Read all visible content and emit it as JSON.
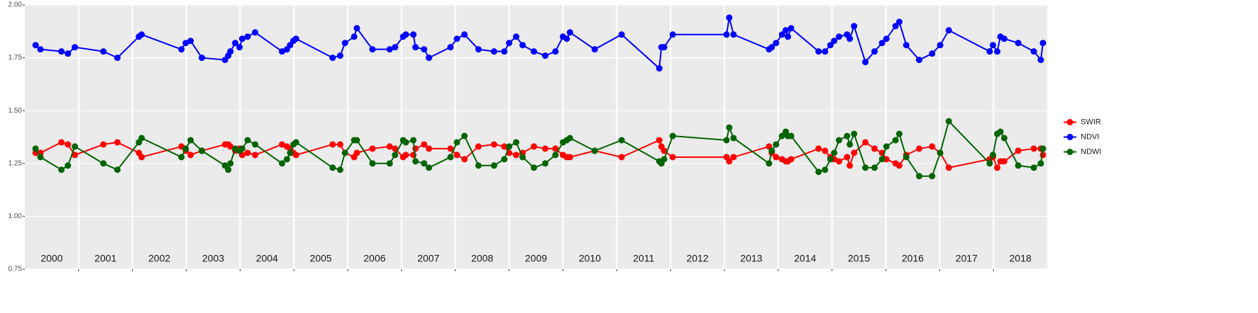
{
  "chart_data": {
    "type": "line",
    "x": [
      2000.2,
      2000.29,
      2000.68,
      2000.8,
      2000.93,
      2001.46,
      2001.72,
      2002.12,
      2002.17,
      2002.91,
      2002.99,
      2003.08,
      2003.29,
      2003.72,
      2003.78,
      2003.82,
      2003.91,
      2003.99,
      2004.04,
      2004.14,
      2004.28,
      2004.78,
      2004.87,
      2004.93,
      2004.99,
      2005.04,
      2005.72,
      2005.86,
      2005.95,
      2006.12,
      2006.17,
      2006.46,
      2006.78,
      2006.88,
      2007.03,
      2007.08,
      2007.22,
      2007.26,
      2007.42,
      2007.51,
      2007.91,
      2008.03,
      2008.17,
      2008.43,
      2008.72,
      2008.91,
      2009.0,
      2009.13,
      2009.25,
      2009.46,
      2009.67,
      2009.86,
      2010.0,
      2010.07,
      2010.13,
      2010.59,
      2011.09,
      2011.79,
      2011.83,
      2011.88,
      2012.04,
      2013.04,
      2013.09,
      2013.17,
      2013.83,
      2013.88,
      2013.96,
      2014.07,
      2014.14,
      2014.18,
      2014.24,
      2014.75,
      2014.87,
      2014.97,
      2015.04,
      2015.13,
      2015.28,
      2015.33,
      2015.41,
      2015.62,
      2015.79,
      2015.93,
      2016.01,
      2016.18,
      2016.25,
      2016.38,
      2016.62,
      2016.86,
      2017.01,
      2017.17,
      2017.93,
      2017.99,
      2018.07,
      2018.13,
      2018.2,
      2018.46,
      2018.75,
      2018.88,
      2018.92
    ],
    "series": [
      {
        "name": "SWIR",
        "color": "#ff0000",
        "values": [
          1.3,
          1.3,
          1.35,
          1.34,
          1.29,
          1.34,
          1.35,
          1.3,
          1.28,
          1.33,
          1.31,
          1.29,
          1.31,
          1.34,
          1.34,
          1.33,
          1.31,
          1.32,
          1.29,
          1.3,
          1.29,
          1.34,
          1.33,
          1.32,
          1.3,
          1.29,
          1.34,
          1.34,
          1.3,
          1.28,
          1.3,
          1.32,
          1.33,
          1.32,
          1.28,
          1.29,
          1.29,
          1.32,
          1.34,
          1.32,
          1.32,
          1.29,
          1.27,
          1.33,
          1.34,
          1.33,
          1.3,
          1.29,
          1.3,
          1.33,
          1.32,
          1.32,
          1.29,
          1.28,
          1.28,
          1.31,
          1.28,
          1.36,
          1.33,
          1.31,
          1.28,
          1.28,
          1.26,
          1.28,
          1.33,
          1.3,
          1.28,
          1.27,
          1.26,
          1.26,
          1.27,
          1.32,
          1.31,
          1.28,
          1.27,
          1.26,
          1.28,
          1.24,
          1.3,
          1.35,
          1.32,
          1.3,
          1.27,
          1.25,
          1.24,
          1.29,
          1.32,
          1.33,
          1.3,
          1.23,
          1.27,
          1.28,
          1.23,
          1.26,
          1.26,
          1.31,
          1.32,
          1.32,
          1.29
        ]
      },
      {
        "name": "NDVI",
        "color": "#0000ff",
        "values": [
          1.81,
          1.79,
          1.78,
          1.77,
          1.8,
          1.78,
          1.75,
          1.85,
          1.86,
          1.79,
          1.82,
          1.83,
          1.75,
          1.74,
          1.76,
          1.78,
          1.82,
          1.8,
          1.84,
          1.85,
          1.87,
          1.78,
          1.79,
          1.81,
          1.83,
          1.84,
          1.75,
          1.76,
          1.82,
          1.85,
          1.89,
          1.79,
          1.79,
          1.8,
          1.85,
          1.86,
          1.86,
          1.8,
          1.79,
          1.75,
          1.8,
          1.84,
          1.86,
          1.79,
          1.78,
          1.78,
          1.82,
          1.85,
          1.81,
          1.78,
          1.76,
          1.78,
          1.85,
          1.84,
          1.87,
          1.79,
          1.86,
          1.7,
          1.8,
          1.8,
          1.86,
          1.86,
          1.94,
          1.86,
          1.79,
          1.8,
          1.82,
          1.86,
          1.88,
          1.85,
          1.89,
          1.78,
          1.78,
          1.81,
          1.83,
          1.85,
          1.86,
          1.84,
          1.9,
          1.73,
          1.78,
          1.82,
          1.84,
          1.9,
          1.92,
          1.81,
          1.74,
          1.77,
          1.81,
          1.88,
          1.78,
          1.81,
          1.78,
          1.85,
          1.84,
          1.82,
          1.78,
          1.74,
          1.82
        ]
      },
      {
        "name": "NDWI",
        "color": "#006400",
        "values": [
          1.32,
          1.28,
          1.22,
          1.24,
          1.33,
          1.25,
          1.22,
          1.35,
          1.37,
          1.28,
          1.32,
          1.36,
          1.31,
          1.24,
          1.22,
          1.25,
          1.32,
          1.31,
          1.32,
          1.36,
          1.34,
          1.25,
          1.27,
          1.3,
          1.34,
          1.35,
          1.23,
          1.22,
          1.3,
          1.36,
          1.36,
          1.25,
          1.25,
          1.29,
          1.36,
          1.35,
          1.36,
          1.26,
          1.25,
          1.23,
          1.28,
          1.35,
          1.38,
          1.24,
          1.24,
          1.27,
          1.33,
          1.35,
          1.28,
          1.23,
          1.25,
          1.29,
          1.35,
          1.36,
          1.37,
          1.31,
          1.36,
          1.26,
          1.25,
          1.27,
          1.38,
          1.36,
          1.42,
          1.37,
          1.25,
          1.31,
          1.34,
          1.38,
          1.4,
          1.38,
          1.38,
          1.21,
          1.22,
          1.27,
          1.3,
          1.36,
          1.38,
          1.34,
          1.39,
          1.23,
          1.23,
          1.27,
          1.33,
          1.36,
          1.39,
          1.28,
          1.19,
          1.19,
          1.3,
          1.45,
          1.25,
          1.29,
          1.39,
          1.4,
          1.37,
          1.24,
          1.23,
          1.25,
          1.32
        ]
      }
    ],
    "year_labels": [
      "2000",
      "2001",
      "2002",
      "2003",
      "2004",
      "2005",
      "2006",
      "2007",
      "2008",
      "2009",
      "2010",
      "2011",
      "2012",
      "2013",
      "2014",
      "2015",
      "2016",
      "2017",
      "2018"
    ],
    "xlim": [
      2000,
      2019
    ],
    "xticks": [
      2001,
      2002,
      2003,
      2004,
      2005,
      2006,
      2007,
      2008,
      2009,
      2010,
      2011,
      2012,
      2013,
      2014,
      2015,
      2016,
      2017,
      2018
    ],
    "ylim": [
      0.75,
      2.0
    ],
    "yticks": [
      {
        "value": 0.75,
        "label": "0.75"
      },
      {
        "value": 1.0,
        "label": "1.00"
      },
      {
        "value": 1.25,
        "label": "1.25"
      },
      {
        "value": 1.5,
        "label": "1.50"
      },
      {
        "value": 1.75,
        "label": "1.75"
      },
      {
        "value": 2.0,
        "label": "2.00"
      }
    ],
    "grid": true,
    "legend": "right"
  }
}
